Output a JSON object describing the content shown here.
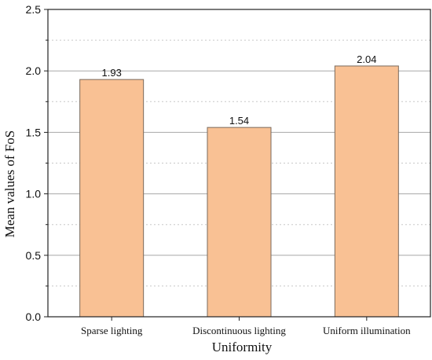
{
  "chart_data": {
    "type": "bar",
    "categories": [
      "Sparse lighting",
      "Discontinuous lighting",
      "Uniform illumination"
    ],
    "values": [
      1.93,
      1.54,
      2.04
    ],
    "value_labels": [
      "1.93",
      "1.54",
      "2.04"
    ],
    "title": "",
    "xlabel": "Uniformity",
    "ylabel": "Mean values of FoS",
    "ylim": [
      0,
      2.5
    ],
    "yticks": [
      0.0,
      0.5,
      1.0,
      1.5,
      2.0,
      2.5
    ],
    "ytick_labels": [
      "0.0",
      "0.5",
      "1.0",
      "1.5",
      "2.0",
      "2.5"
    ],
    "grid": true,
    "grid_style": "major solid, minor dashed",
    "bar_color": "#f9c194",
    "bar_edge_color": "#7a6a5c"
  }
}
